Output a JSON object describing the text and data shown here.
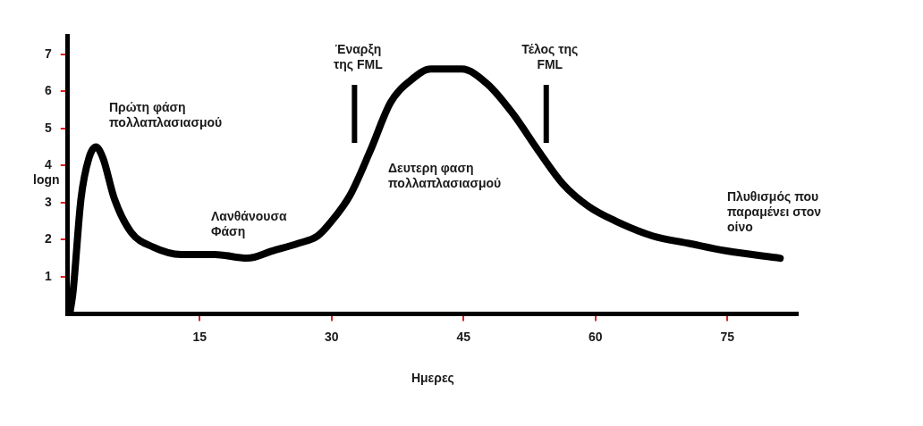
{
  "chart_data": {
    "type": "line",
    "xlabel": "Ημερες",
    "ylabel": "logn",
    "series": [
      {
        "color": "#000000",
        "x": [
          0.3,
          0.6,
          1.5,
          2.4,
          3.2,
          4,
          5.3,
          7.2,
          9.7,
          12.9,
          16.7,
          20.4,
          23.3,
          26.2,
          28.4,
          30,
          32.1,
          34.4,
          36.7,
          39,
          41.3,
          44.8,
          47.7,
          50.6,
          53.5,
          56.3,
          59.2,
          62.3,
          66.5,
          70.6,
          74.8,
          81
        ],
        "values": [
          0.1,
          0.6,
          3.1,
          4.2,
          4.5,
          4.2,
          3.1,
          2.2,
          1.8,
          1.6,
          1.6,
          1.5,
          1.7,
          1.9,
          2.1,
          2.5,
          3.2,
          4.4,
          5.7,
          6.3,
          6.6,
          6.6,
          6.2,
          5.4,
          4.4,
          3.5,
          2.9,
          2.5,
          2.1,
          1.9,
          1.7,
          1.5
        ]
      }
    ],
    "xlim": [
      0,
      83
    ],
    "xticks": [
      15,
      30,
      45,
      60,
      75
    ],
    "ylim": [
      0,
      7.5
    ],
    "yticks": [
      1,
      2,
      3,
      4,
      5,
      6,
      7
    ],
    "grid": false,
    "legend": false,
    "marker": "none",
    "line_style": "solid",
    "ref_lines": [
      {
        "axis": "x",
        "value": 32.6,
        "label": "Έναρξη\nτης FML",
        "color": "#000000"
      },
      {
        "axis": "x",
        "value": 54.4,
        "label": "Τέλος της\nFML",
        "color": "#000000"
      }
    ],
    "annotations": [
      "Πρώτη φάση\nπολλαπλασιασμού",
      "Λανθάνουσα\nΦάση",
      "Δευτερη φαση\nπολλαπλασιασμού",
      "Πλυθισμός που\nπαραμένει στον\nοίνο"
    ]
  }
}
